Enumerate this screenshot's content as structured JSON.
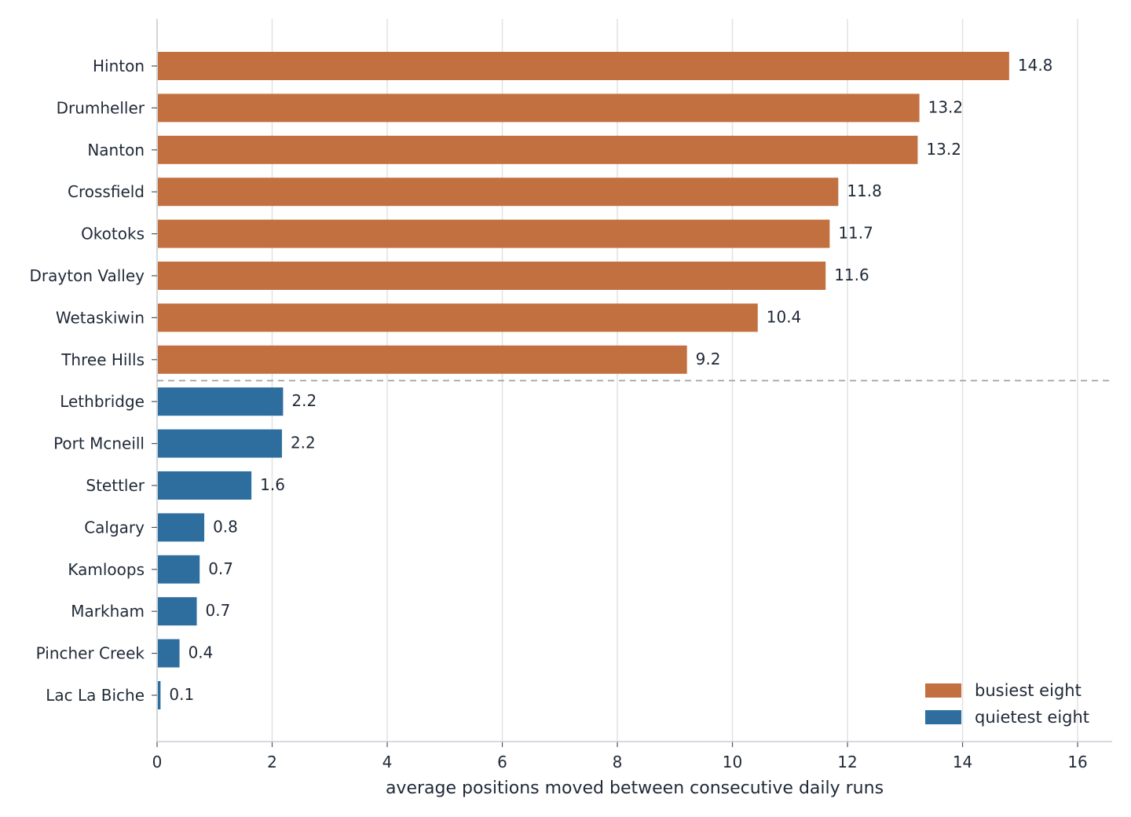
{
  "chart_data": {
    "type": "bar",
    "orientation": "horizontal",
    "xlabel": "average positions moved between consecutive daily runs",
    "ylabel": "",
    "xlim": [
      0,
      16.6
    ],
    "xticks": [
      0,
      2,
      4,
      6,
      8,
      10,
      12,
      14,
      16
    ],
    "grid": "vertical",
    "legend_position": "bottom-right",
    "separator": "dashed line between busiest and quietest groups",
    "series": [
      {
        "name": "busiest eight",
        "color": "#c2703f",
        "categories": [
          "Hinton",
          "Drumheller",
          "Nanton",
          "Crossfield",
          "Okotoks",
          "Drayton Valley",
          "Wetaskiwin",
          "Three Hills"
        ],
        "values": [
          14.8,
          13.2,
          13.2,
          11.8,
          11.7,
          11.6,
          10.4,
          9.2
        ]
      },
      {
        "name": "quietest eight",
        "color": "#2e6e9e",
        "categories": [
          "Lethbridge",
          "Port Mcneill",
          "Stettler",
          "Calgary",
          "Kamloops",
          "Markham",
          "Pincher Creek",
          "Lac La Biche"
        ],
        "values": [
          2.2,
          2.2,
          1.6,
          0.8,
          0.7,
          0.7,
          0.4,
          0.1
        ]
      }
    ],
    "bar_values_plotted": {
      "busiest eight": [
        14.81,
        13.25,
        13.22,
        11.84,
        11.69,
        11.62,
        10.44,
        9.21
      ],
      "quietest eight": [
        2.19,
        2.17,
        1.64,
        0.82,
        0.74,
        0.69,
        0.39,
        0.06
      ]
    }
  }
}
